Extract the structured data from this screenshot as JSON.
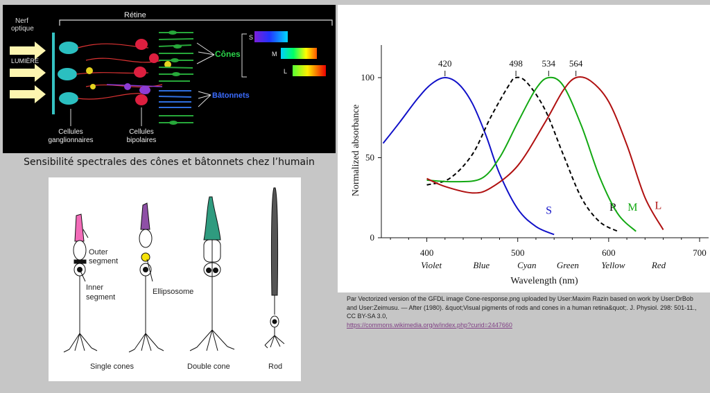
{
  "retina": {
    "title": "Rétine",
    "nerve_label": [
      "Nerf",
      "optique"
    ],
    "light_label": "LUMIÈRE",
    "cones_label": "Cônes",
    "rods_label": "Bâtonnets",
    "ganglion_label": [
      "Cellules",
      "ganglionnaires"
    ],
    "bipolar_label": [
      "Cellules",
      "bipolaires"
    ],
    "spectrum_labels": [
      "S",
      "M",
      "L"
    ]
  },
  "caption": "Sensibilité spectrales des cônes et bâtonnets chez l’humain",
  "cells": {
    "outer_segment": [
      "Outer",
      "segment"
    ],
    "inner_segment": [
      "Inner",
      "segment"
    ],
    "ellipsosome": "Ellipsosome",
    "single_cones": "Single cones",
    "double_cone": "Double cone",
    "rod": "Rod",
    "colors": {
      "pink": "#f26bb8",
      "purple": "#8e4fa6",
      "yellow": "#f5e30a",
      "teal": "#2f9b7f",
      "rod": "#555555"
    }
  },
  "chart_data": {
    "type": "line",
    "xlabel": "Wavelength (nm)",
    "ylabel": "Normalized absorbance",
    "xlim": [
      350,
      700
    ],
    "ylim": [
      0,
      100
    ],
    "xticks": [
      400,
      500,
      600,
      700
    ],
    "yticks": [
      0,
      50,
      100
    ],
    "color_band_labels": [
      "Violet",
      "Blue",
      "Cyan",
      "Green",
      "Yellow",
      "Red"
    ],
    "color_band_positions": [
      405,
      460,
      510,
      555,
      605,
      655
    ],
    "peak_labels": [
      "420",
      "498",
      "534",
      "564"
    ],
    "peak_positions": [
      420,
      498,
      534,
      564
    ],
    "series": [
      {
        "name": "S",
        "color": "#1010c8",
        "dash": false,
        "x": [
          352,
          370,
          390,
          405,
          420,
          435,
          450,
          465,
          480,
          500,
          520,
          540
        ],
        "y": [
          59,
          72,
          87,
          96,
          100,
          96,
          84,
          64,
          40,
          18,
          7,
          2
        ]
      },
      {
        "name": "R",
        "color": "#000000",
        "dash": true,
        "x": [
          400,
          425,
          450,
          470,
          490,
          498,
          510,
          530,
          550,
          570,
          590,
          610
        ],
        "y": [
          33,
          37,
          52,
          75,
          95,
          100,
          97,
          80,
          52,
          25,
          10,
          4
        ]
      },
      {
        "name": "M",
        "color": "#12a812",
        "dash": false,
        "x": [
          400,
          430,
          460,
          480,
          500,
          520,
          534,
          550,
          570,
          590,
          610,
          630
        ],
        "y": [
          36,
          35,
          37,
          50,
          72,
          93,
          100,
          95,
          70,
          38,
          15,
          4
        ]
      },
      {
        "name": "L",
        "color": "#b01010",
        "dash": false,
        "x": [
          400,
          420,
          450,
          470,
          500,
          530,
          550,
          564,
          580,
          600,
          620,
          640,
          660
        ],
        "y": [
          37,
          32,
          28,
          31,
          45,
          72,
          92,
          100,
          98,
          85,
          58,
          25,
          5
        ]
      }
    ]
  },
  "credit": {
    "text": "Par Vectorized version of the GFDL image Cone-response.png uploaded by User:Maxim Razin based on work by User:DrBob and User:Zeimusu. — After (1980). &quot;Visual pigments of rods and cones in a human retina&quot;. J. Physiol. 298: 501-11., CC BY-SA 3.0,",
    "link": "https://commons.wikimedia.org/w/index.php?curid=2447660"
  }
}
